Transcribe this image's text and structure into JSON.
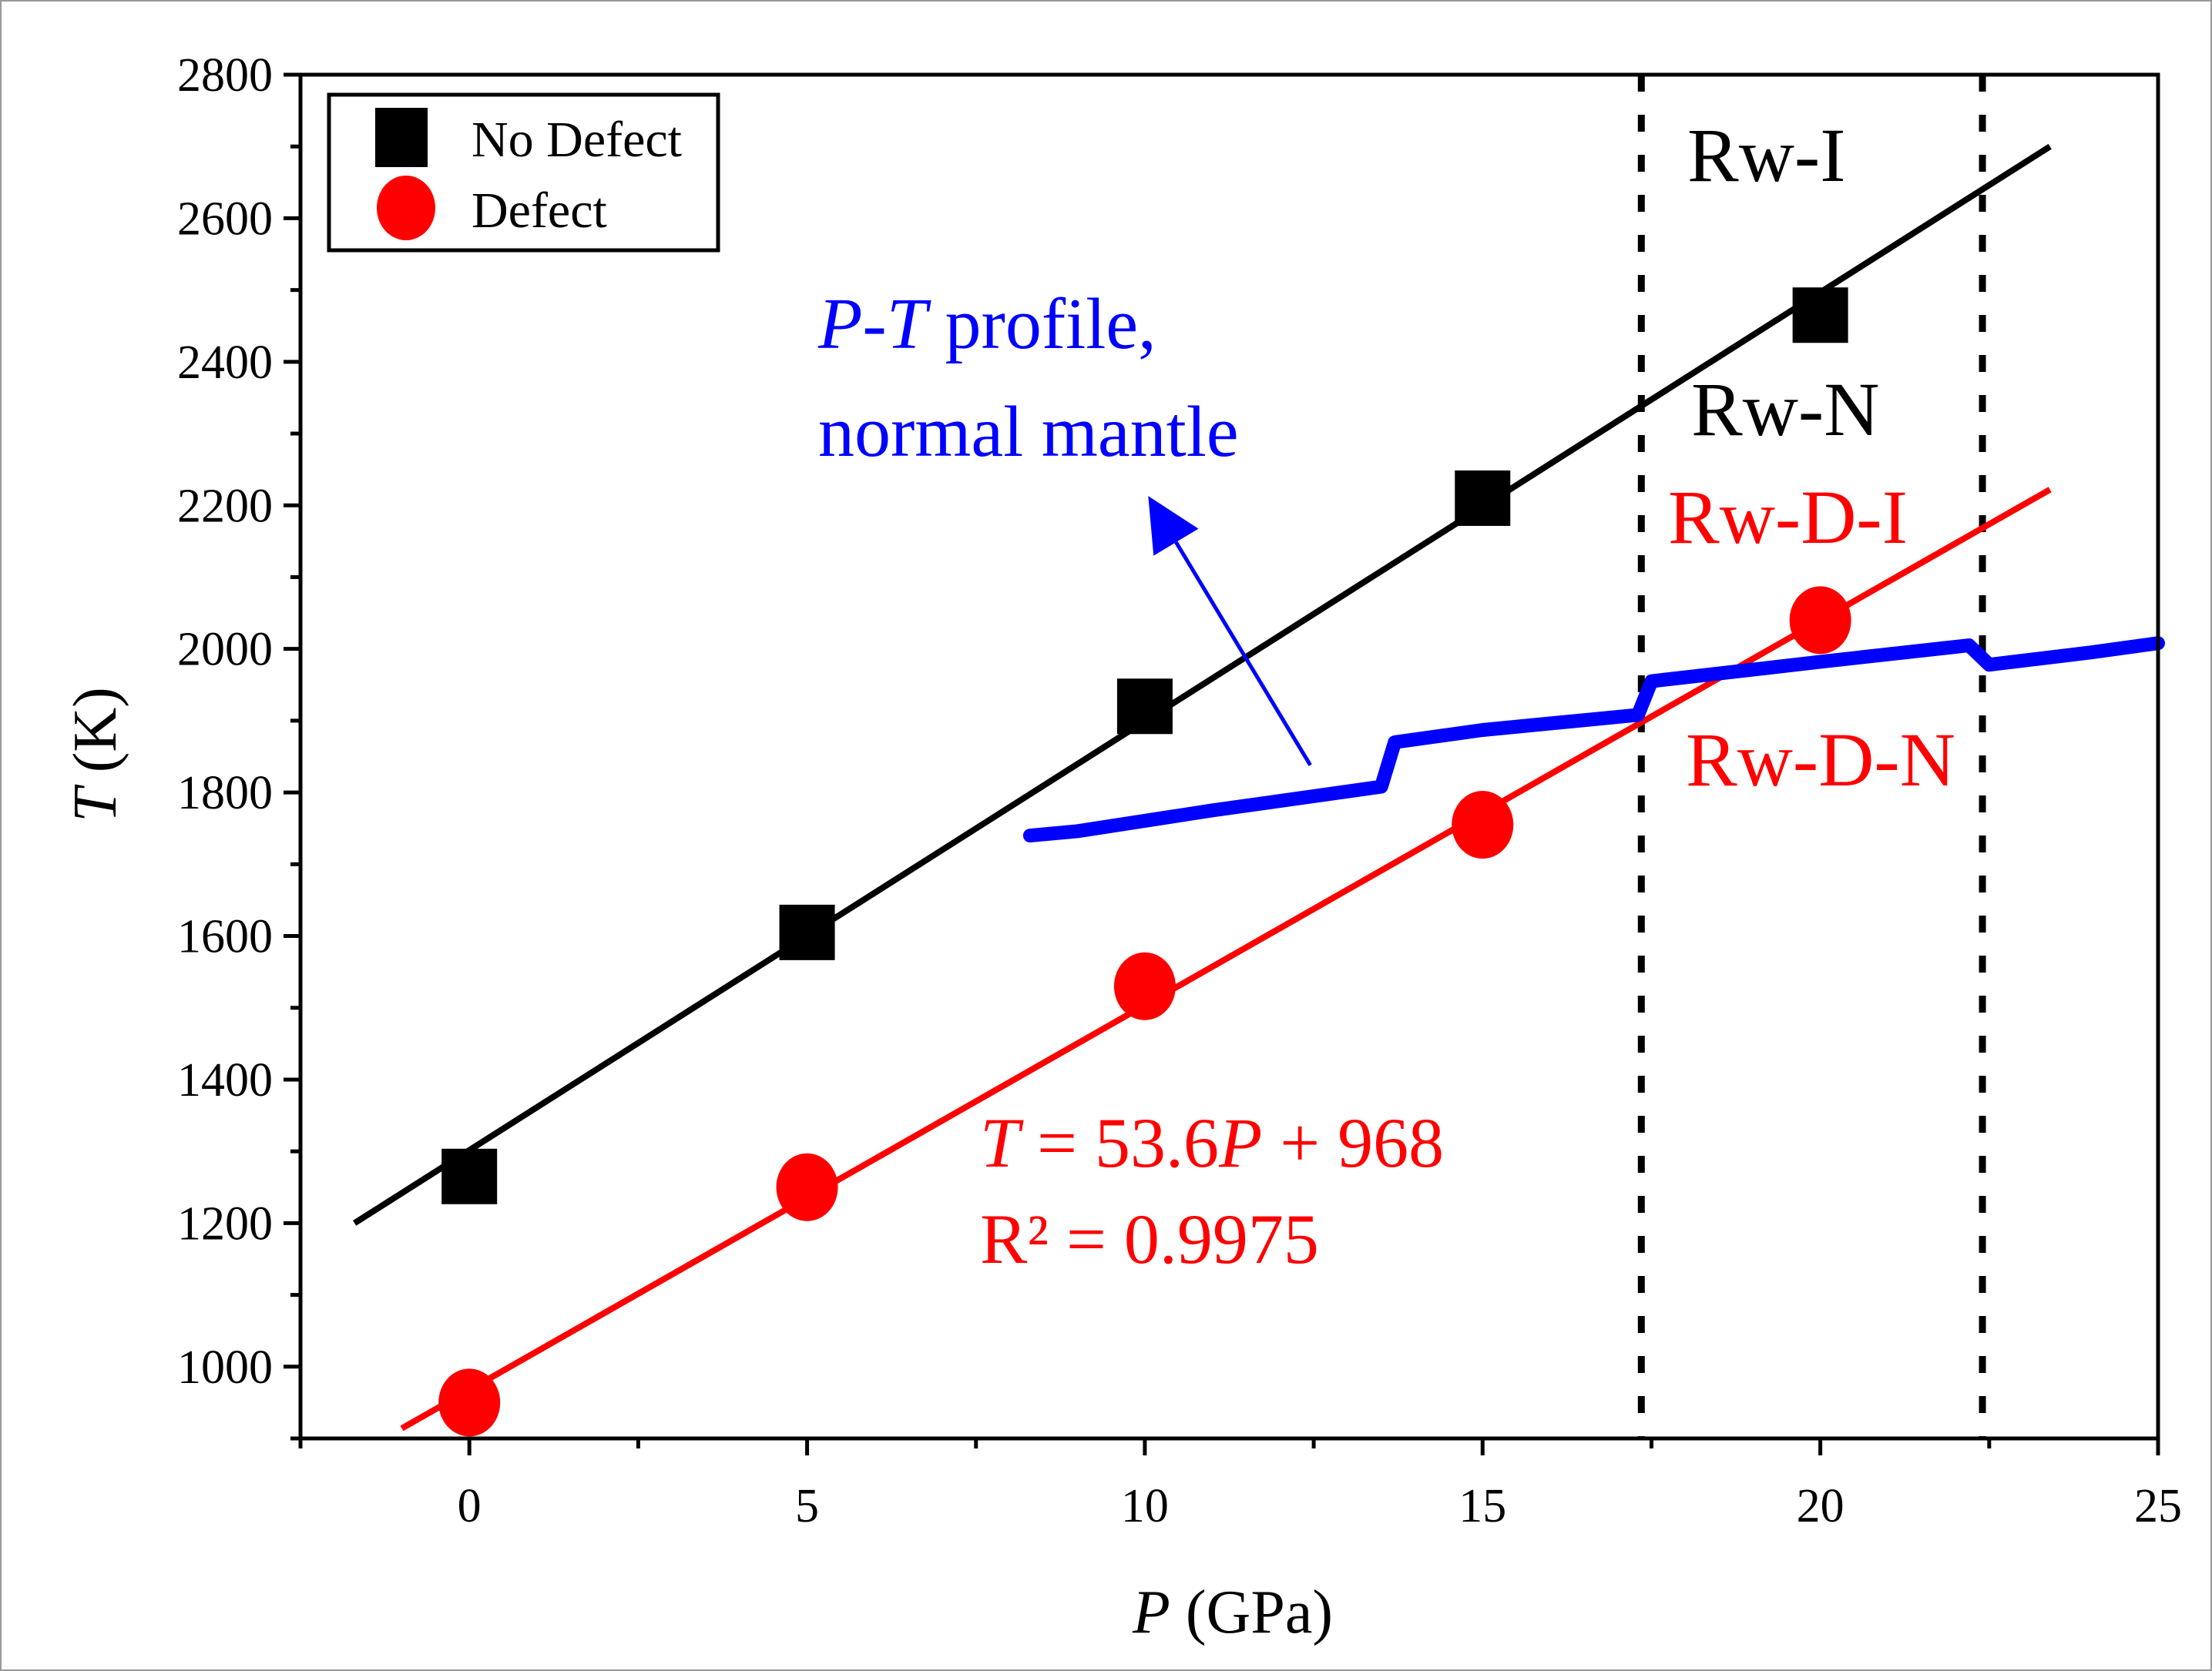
{
  "chart_data": {
    "type": "scatter",
    "title": "",
    "xlabel": {
      "italic": "P",
      "rest": " (GPa)"
    },
    "ylabel": {
      "italic": "T",
      "rest": " (K)"
    },
    "xlim": [
      -2.5,
      25
    ],
    "ylim": [
      900,
      2800
    ],
    "x_ticks": [
      0,
      5,
      10,
      15,
      20,
      25
    ],
    "x_tick_labels": [
      "0",
      "5",
      "10",
      "15",
      "20",
      "25"
    ],
    "y_ticks": [
      1000,
      1200,
      1400,
      1600,
      1800,
      2000,
      2200,
      2400,
      2600,
      2800
    ],
    "y_tick_labels": [
      "1000",
      "1200",
      "1400",
      "1600",
      "1800",
      "2000",
      "2200",
      "2400",
      "2600",
      "2800"
    ],
    "grid": false,
    "legend_position": "top-left",
    "series": [
      {
        "name": "No Defect",
        "marker": "square",
        "color": "#000000",
        "x": [
          0,
          5,
          10,
          15,
          20
        ],
        "y": [
          1265,
          1605,
          1920,
          2210,
          2465
        ],
        "fit": {
          "x": [
            -1.7,
            23.4
          ],
          "y": [
            1200,
            2700
          ]
        }
      },
      {
        "name": "Defect",
        "marker": "circle",
        "color": "#ff0000",
        "x": [
          0,
          5,
          10,
          15,
          20
        ],
        "y": [
          950,
          1250,
          1530,
          1755,
          2040
        ],
        "fit": {
          "x": [
            -1,
            23.4
          ],
          "y": [
            914,
            2222
          ]
        }
      },
      {
        "name": "P-T profile, normal mantle",
        "marker": "line",
        "color": "#0000ff",
        "x": [
          8.3,
          9,
          11,
          13.5,
          13.7,
          15,
          17.3,
          17.5,
          20,
          22.2,
          22.5,
          24,
          25
        ],
        "y": [
          1740,
          1746,
          1775,
          1808,
          1870,
          1887,
          1908,
          1955,
          1982,
          2005,
          1978,
          1995,
          2008
        ]
      }
    ],
    "vlines": [
      17.35,
      22.4
    ],
    "annotations": {
      "rw_i": "Rw-I",
      "rw_n": "Rw-N",
      "rw_d_i": "Rw-D-I",
      "rw_d_n": "Rw-D-N",
      "profile_italic": "P",
      "profile_dash": "-",
      "profile_italic2": "T",
      "profile_rest": " profile,",
      "profile_line2": "normal mantle",
      "eq_italic": "T",
      "eq_mid": " = 53.6",
      "eq_italic2": "P",
      "eq_rest": " + 968",
      "r2": "R² = 0.9975"
    },
    "arrow": {
      "from": [
        12.45,
        1838
      ],
      "to": [
        10.05,
        2213
      ]
    }
  }
}
